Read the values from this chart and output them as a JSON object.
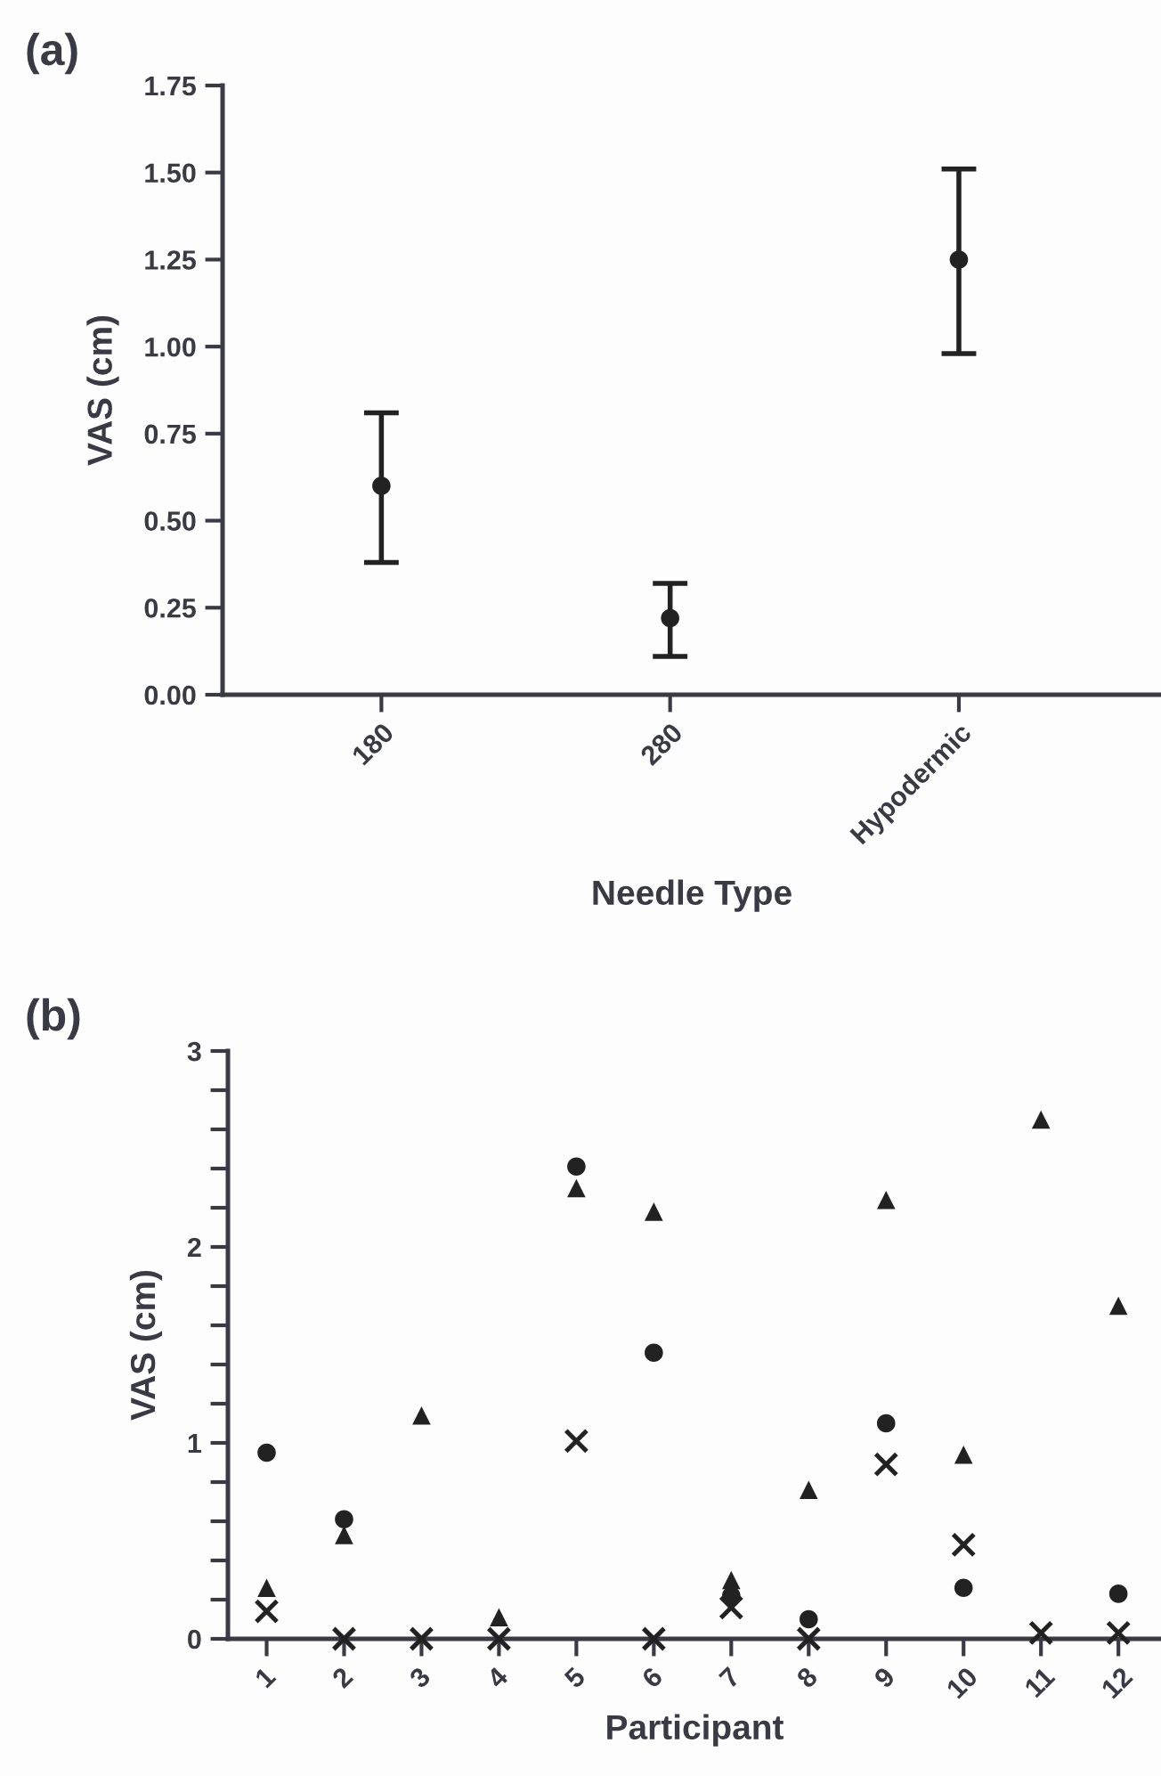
{
  "chart_data": [
    {
      "type": "scatter",
      "annotations": [
        "(a)"
      ],
      "xlabel": "Needle Type",
      "ylabel": "VAS (cm)",
      "categories": [
        "180",
        "280",
        "Hypodermic"
      ],
      "marker": "circle",
      "series": [
        {
          "color": "#222222",
          "values": [
            0.6,
            0.22,
            1.25
          ],
          "errors": [
            [
              0.38,
              0.81
            ],
            [
              0.11,
              0.32
            ],
            [
              0.98,
              1.51
            ]
          ]
        }
      ],
      "ylim": [
        0,
        1.75
      ],
      "yticks": [
        {
          "value": 0,
          "label": "0.00"
        },
        {
          "value": 0.25,
          "label": "0.25"
        },
        {
          "value": 0.5,
          "label": "0.50"
        },
        {
          "value": 0.75,
          "label": "0.75"
        },
        {
          "value": 1.0,
          "label": "1.00"
        },
        {
          "value": 1.25,
          "label": "1.25"
        },
        {
          "value": 1.5,
          "label": "1.50"
        },
        {
          "value": 1.75,
          "label": "1.75"
        }
      ],
      "grid": false,
      "legend": false
    },
    {
      "type": "scatter",
      "annotations": [
        "(b)"
      ],
      "xlabel": "Participant",
      "ylabel": "VAS (cm)",
      "categories": [
        "1",
        "2",
        "3",
        "4",
        "5",
        "6",
        "7",
        "8",
        "9",
        "10",
        "11",
        "12"
      ],
      "series": [
        {
          "color": "#222222",
          "marker": "circle",
          "values": [
            0.95,
            0.61,
            null,
            null,
            2.41,
            1.46,
            0.22,
            0.1,
            1.1,
            0.26,
            null,
            0.23
          ]
        },
        {
          "color": "#222222",
          "marker": "triangle",
          "values": [
            0.26,
            0.53,
            1.14,
            0.11,
            2.3,
            2.18,
            0.3,
            0.76,
            2.24,
            0.94,
            2.65,
            1.7
          ]
        },
        {
          "color": "#222222",
          "marker": "cross",
          "values": [
            0.14,
            0,
            0,
            0,
            1.01,
            0,
            0.16,
            0,
            0.89,
            0.48,
            0.03,
            0.03
          ]
        }
      ],
      "ylim": [
        0,
        3
      ],
      "yticks": [
        0,
        {
          "value": 0.2,
          "label": null
        },
        {
          "value": 0.4,
          "label": null
        },
        {
          "value": 0.6,
          "label": null
        },
        {
          "value": 0.8,
          "label": null
        },
        1,
        {
          "value": 1.2,
          "label": null
        },
        {
          "value": 1.4,
          "label": null
        },
        {
          "value": 1.6,
          "label": null
        },
        {
          "value": 1.8,
          "label": null
        },
        2,
        {
          "value": 2.2,
          "label": null
        },
        {
          "value": 2.4,
          "label": null
        },
        {
          "value": 2.6,
          "label": null
        },
        {
          "value": 2.8,
          "label": null
        },
        3
      ],
      "grid": false,
      "legend": false
    }
  ]
}
